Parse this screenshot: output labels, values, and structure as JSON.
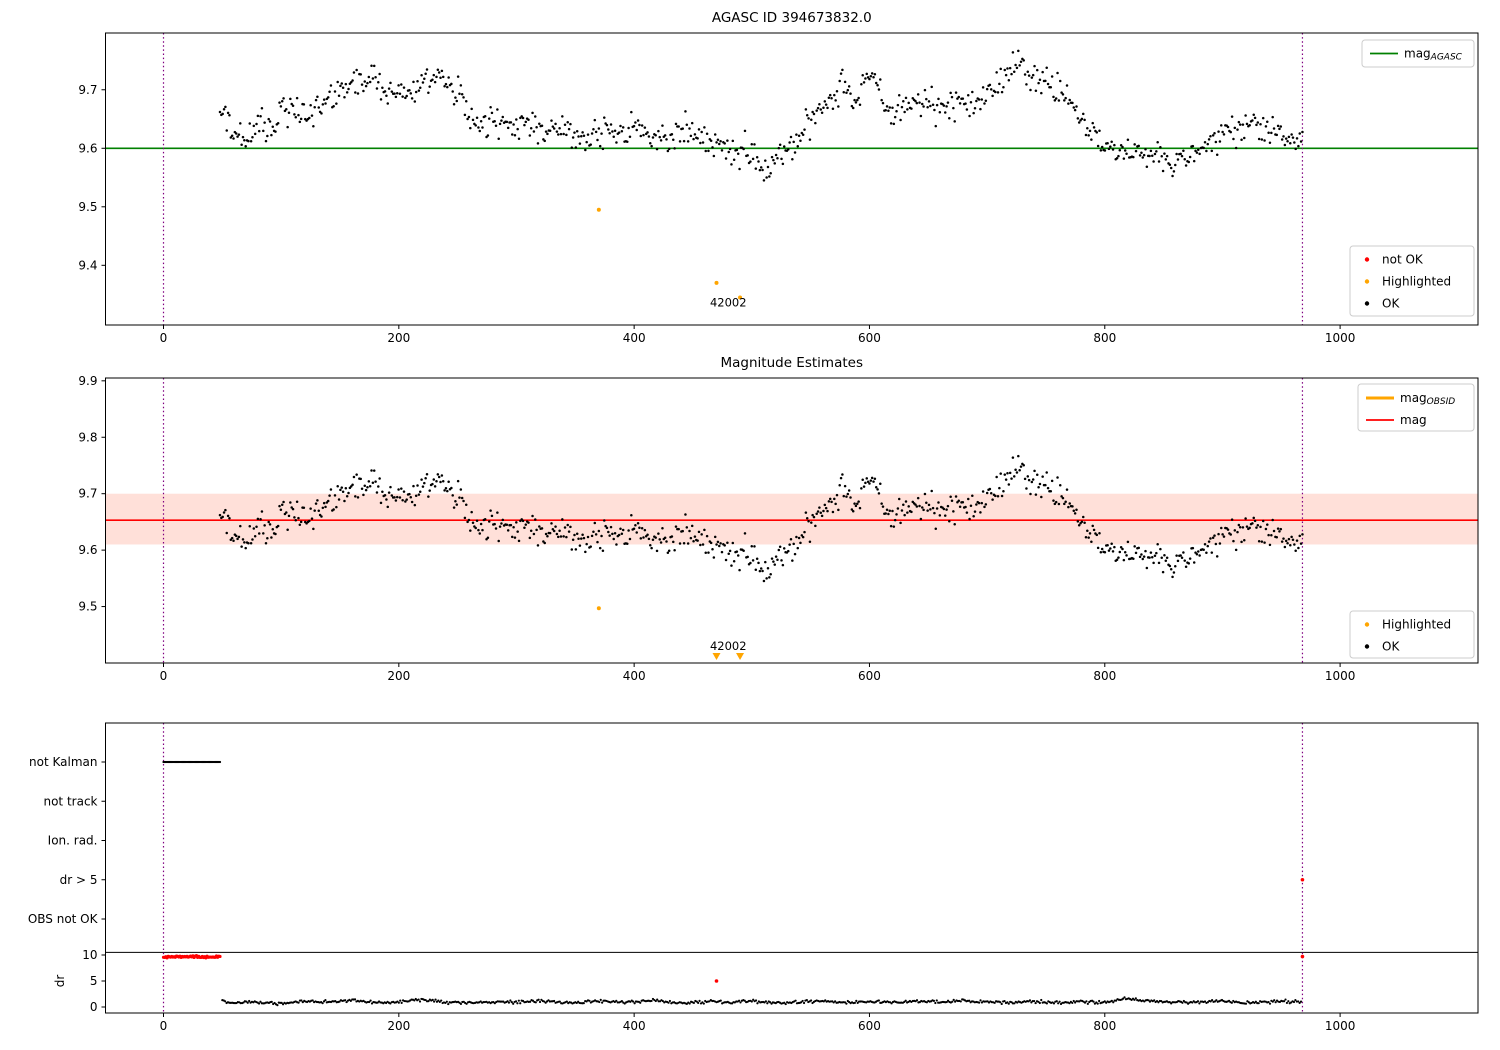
{
  "colors": {
    "ok": "#000000",
    "not_ok": "#ff0000",
    "highlighted": "#ffa500",
    "mag_agasc": "#008000",
    "mag": "#ff0000",
    "mag_obsid": "#ffa500",
    "band": "#ff2d00",
    "vline": "#800080"
  },
  "chart_data": [
    {
      "type": "scatter",
      "title": "AGASC ID 394673832.0",
      "xticks": [
        0,
        200,
        400,
        600,
        800,
        1000
      ],
      "yticks": [
        9.4,
        9.5,
        9.6,
        9.7
      ],
      "xlim": [
        -49.3,
        1117.2
      ],
      "ylim": [
        9.298,
        9.797
      ],
      "hline": {
        "label_main": "mag",
        "label_sub": "AGASC",
        "value": 9.6
      },
      "vlines": [
        0,
        968
      ],
      "series": {
        "name": "OK",
        "x_range": [
          48,
          968
        ],
        "note": "dense scatter of per-sample magnitudes; mean profile estimated by anchors",
        "anchors": [
          [
            48,
            9.655
          ],
          [
            55,
            9.64
          ],
          [
            62,
            9.625
          ],
          [
            70,
            9.615
          ],
          [
            78,
            9.63
          ],
          [
            85,
            9.64
          ],
          [
            92,
            9.63
          ],
          [
            100,
            9.66
          ],
          [
            108,
            9.67
          ],
          [
            115,
            9.655
          ],
          [
            122,
            9.66
          ],
          [
            130,
            9.675
          ],
          [
            138,
            9.68
          ],
          [
            145,
            9.69
          ],
          [
            152,
            9.695
          ],
          [
            160,
            9.705
          ],
          [
            168,
            9.715
          ],
          [
            175,
            9.72
          ],
          [
            182,
            9.71
          ],
          [
            190,
            9.7
          ],
          [
            198,
            9.695
          ],
          [
            205,
            9.7
          ],
          [
            212,
            9.69
          ],
          [
            220,
            9.705
          ],
          [
            228,
            9.72
          ],
          [
            235,
            9.715
          ],
          [
            242,
            9.705
          ],
          [
            250,
            9.7
          ],
          [
            255,
            9.68
          ],
          [
            260,
            9.65
          ],
          [
            268,
            9.635
          ],
          [
            275,
            9.64
          ],
          [
            282,
            9.65
          ],
          [
            290,
            9.64
          ],
          [
            298,
            9.635
          ],
          [
            305,
            9.645
          ],
          [
            312,
            9.64
          ],
          [
            320,
            9.63
          ],
          [
            328,
            9.625
          ],
          [
            335,
            9.635
          ],
          [
            342,
            9.63
          ],
          [
            350,
            9.62
          ],
          [
            358,
            9.615
          ],
          [
            365,
            9.62
          ],
          [
            372,
            9.625
          ],
          [
            380,
            9.63
          ],
          [
            388,
            9.625
          ],
          [
            395,
            9.63
          ],
          [
            402,
            9.635
          ],
          [
            410,
            9.625
          ],
          [
            418,
            9.62
          ],
          [
            425,
            9.625
          ],
          [
            432,
            9.62
          ],
          [
            440,
            9.63
          ],
          [
            448,
            9.625
          ],
          [
            455,
            9.615
          ],
          [
            462,
            9.61
          ],
          [
            470,
            9.605
          ],
          [
            478,
            9.6
          ],
          [
            485,
            9.595
          ],
          [
            492,
            9.6
          ],
          [
            500,
            9.585
          ],
          [
            508,
            9.575
          ],
          [
            515,
            9.57
          ],
          [
            522,
            9.585
          ],
          [
            530,
            9.6
          ],
          [
            538,
            9.615
          ],
          [
            545,
            9.635
          ],
          [
            552,
            9.655
          ],
          [
            560,
            9.67
          ],
          [
            568,
            9.685
          ],
          [
            574,
            9.705
          ],
          [
            578,
            9.715
          ],
          [
            582,
            9.7
          ],
          [
            588,
            9.685
          ],
          [
            592,
            9.7
          ],
          [
            597,
            9.72
          ],
          [
            602,
            9.73
          ],
          [
            607,
            9.705
          ],
          [
            612,
            9.67
          ],
          [
            618,
            9.655
          ],
          [
            625,
            9.66
          ],
          [
            632,
            9.67
          ],
          [
            640,
            9.675
          ],
          [
            648,
            9.685
          ],
          [
            655,
            9.675
          ],
          [
            662,
            9.665
          ],
          [
            670,
            9.675
          ],
          [
            678,
            9.685
          ],
          [
            685,
            9.675
          ],
          [
            692,
            9.68
          ],
          [
            700,
            9.695
          ],
          [
            707,
            9.705
          ],
          [
            714,
            9.715
          ],
          [
            720,
            9.735
          ],
          [
            726,
            9.745
          ],
          [
            732,
            9.73
          ],
          [
            740,
            9.72
          ],
          [
            748,
            9.715
          ],
          [
            755,
            9.705
          ],
          [
            762,
            9.7
          ],
          [
            770,
            9.675
          ],
          [
            778,
            9.655
          ],
          [
            785,
            9.635
          ],
          [
            792,
            9.62
          ],
          [
            800,
            9.605
          ],
          [
            808,
            9.6
          ],
          [
            815,
            9.595
          ],
          [
            822,
            9.59
          ],
          [
            830,
            9.59
          ],
          [
            838,
            9.585
          ],
          [
            845,
            9.59
          ],
          [
            852,
            9.58
          ],
          [
            858,
            9.57
          ],
          [
            865,
            9.59
          ],
          [
            872,
            9.6
          ],
          [
            880,
            9.6
          ],
          [
            888,
            9.605
          ],
          [
            895,
            9.61
          ],
          [
            902,
            9.62
          ],
          [
            910,
            9.63
          ],
          [
            918,
            9.64
          ],
          [
            925,
            9.645
          ],
          [
            932,
            9.63
          ],
          [
            940,
            9.625
          ],
          [
            948,
            9.625
          ],
          [
            955,
            9.62
          ],
          [
            962,
            9.615
          ],
          [
            968,
            9.61
          ]
        ]
      },
      "highlighted": [
        [
          370,
          9.495
        ],
        [
          470,
          9.37
        ],
        [
          490,
          9.345
        ]
      ],
      "annotation": {
        "text": "42002",
        "x": 480,
        "y": 9.33
      },
      "legend_top": [
        {
          "main": "mag",
          "sub": "AGASC",
          "color": "#008000"
        }
      ],
      "legend_bottom": [
        {
          "label": "not OK",
          "color": "#ff0000"
        },
        {
          "label": "Highlighted",
          "color": "#ffa500"
        },
        {
          "label": "OK",
          "color": "#000000"
        }
      ]
    },
    {
      "type": "scatter",
      "title": "Magnitude Estimates",
      "xticks": [
        0,
        200,
        400,
        600,
        800,
        1000
      ],
      "yticks": [
        9.5,
        9.6,
        9.7,
        9.8,
        9.9
      ],
      "ylim": [
        9.4,
        9.905
      ],
      "mag_line": 9.653,
      "band": [
        9.61,
        9.7
      ],
      "vlines": [
        0,
        968
      ],
      "series_ref": 0,
      "highlighted": [
        [
          370,
          9.497
        ]
      ],
      "offscale_x": [
        470,
        490
      ],
      "annotation": {
        "text": "42002",
        "x": 480,
        "y": 9.423
      },
      "legend_top": [
        {
          "main": "mag",
          "sub": "OBSID",
          "color": "#ffa500",
          "lw": 3
        },
        {
          "main": "mag",
          "sub": "",
          "color": "#ff0000",
          "lw": 1.8
        }
      ],
      "legend_bottom": [
        {
          "label": "Highlighted",
          "color": "#ffa500"
        },
        {
          "label": "OK",
          "color": "#000000"
        }
      ]
    },
    {
      "type": "scatter",
      "categories": [
        "not Kalman",
        "not track",
        "Ion. rad.",
        "dr > 5",
        "OBS not OK"
      ],
      "dr_ticks": [
        10,
        5,
        0
      ],
      "ylabel": "dr",
      "xticks": [
        0,
        200,
        400,
        600,
        800,
        1000
      ],
      "vlines": [
        0,
        968
      ],
      "hline_dr": 10.5,
      "not_kalman": {
        "x_range": [
          0,
          48
        ]
      },
      "dr_red_band": {
        "x_range": [
          0,
          48
        ],
        "dr": 9.65
      },
      "dr_series": {
        "x_range": [
          50,
          968
        ],
        "anchors": [
          [
            50,
            1.2
          ],
          [
            60,
            0.8
          ],
          [
            80,
            1.0
          ],
          [
            100,
            0.7
          ],
          [
            120,
            1.1
          ],
          [
            140,
            0.9
          ],
          [
            160,
            1.3
          ],
          [
            180,
            0.8
          ],
          [
            200,
            1.0
          ],
          [
            220,
            1.4
          ],
          [
            240,
            0.9
          ],
          [
            260,
            0.8
          ],
          [
            280,
            1.0
          ],
          [
            300,
            0.9
          ],
          [
            320,
            1.2
          ],
          [
            340,
            0.8
          ],
          [
            360,
            1.0
          ],
          [
            380,
            1.1
          ],
          [
            400,
            0.9
          ],
          [
            420,
            1.3
          ],
          [
            440,
            0.8
          ],
          [
            460,
            1.0
          ],
          [
            480,
            0.9
          ],
          [
            500,
            1.1
          ],
          [
            520,
            0.8
          ],
          [
            540,
            1.0
          ],
          [
            560,
            1.2
          ],
          [
            580,
            0.9
          ],
          [
            600,
            1.0
          ],
          [
            620,
            0.8
          ],
          [
            640,
            1.1
          ],
          [
            660,
            0.9
          ],
          [
            680,
            1.2
          ],
          [
            700,
            1.0
          ],
          [
            720,
            0.9
          ],
          [
            740,
            1.1
          ],
          [
            760,
            0.8
          ],
          [
            780,
            1.0
          ],
          [
            800,
            0.9
          ],
          [
            820,
            1.6
          ],
          [
            840,
            1.1
          ],
          [
            860,
            0.9
          ],
          [
            880,
            1.0
          ],
          [
            900,
            1.2
          ],
          [
            920,
            0.8
          ],
          [
            940,
            1.0
          ],
          [
            960,
            1.1
          ],
          [
            968,
            1.0
          ]
        ]
      },
      "red_dr_points": [
        [
          470,
          5
        ],
        [
          968,
          9.7
        ]
      ],
      "red_flag_points": [
        {
          "x": 968,
          "category": "dr > 5"
        }
      ]
    }
  ]
}
